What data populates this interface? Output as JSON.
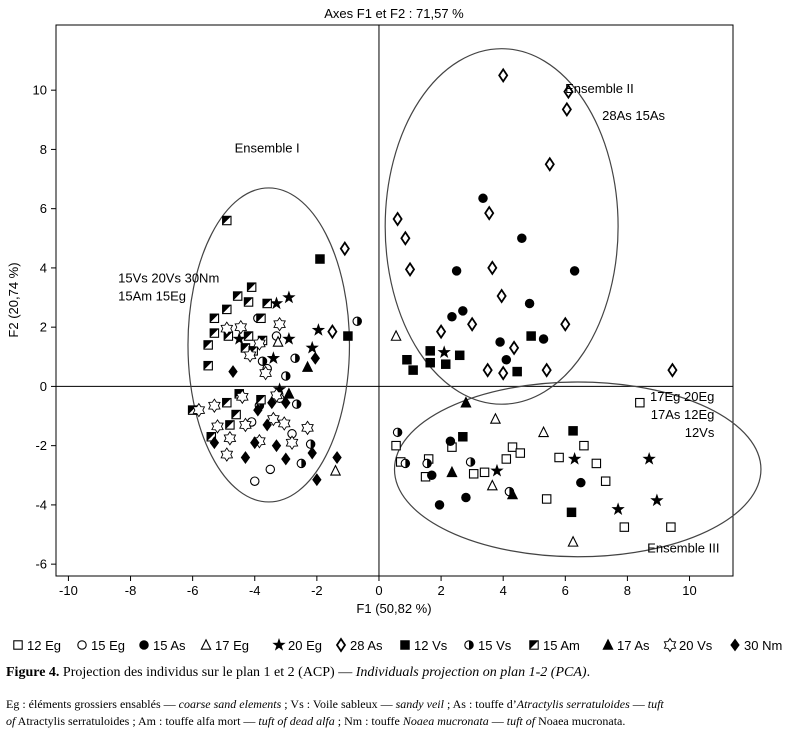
{
  "chart_data": {
    "type": "scatter",
    "title": "Axes F1 et F2 : 71,57 %",
    "xlabel": "F1 (50,82 %)",
    "ylabel": "F2 (20,74 %)",
    "xlim": [
      -10.4,
      11.4
    ],
    "ylim": [
      -6.4,
      12.2
    ],
    "xticks": [
      "-10",
      "-8",
      "-6",
      "-4",
      "-2",
      "0",
      "2",
      "4",
      "6",
      "8",
      "10"
    ],
    "yticks": [
      "-6",
      "-4",
      "-2",
      "0",
      "2",
      "4",
      "6",
      "8",
      "10"
    ],
    "grid": false,
    "ellipses": [
      {
        "name": "Ensemble I",
        "cx": -3.55,
        "cy": 1.4,
        "rx": 2.6,
        "ry": 5.3
      },
      {
        "name": "Ensemble II",
        "cx": 3.95,
        "cy": 5.4,
        "rx": 3.75,
        "ry": 6.0
      },
      {
        "name": "Ensemble III",
        "cx": 6.4,
        "cy": -2.8,
        "rx": 5.9,
        "ry": 2.95
      }
    ],
    "annotations": [
      {
        "text": "Ensemble I",
        "x": -3.6,
        "y": 7.9
      },
      {
        "text": "Ensemble II",
        "x": 7.1,
        "y": 9.9
      },
      {
        "text": "28As 15As",
        "x": 8.2,
        "y": 9.0
      },
      {
        "text": "15Vs 20Vs 30Nm",
        "x": -8.4,
        "y": 3.5
      },
      {
        "text": "15Am 15Eg",
        "x": -8.4,
        "y": 2.9
      },
      {
        "text": "17Eg 20Eg",
        "x": 10.8,
        "y": -0.5
      },
      {
        "text": "17As 12Eg",
        "x": 10.8,
        "y": -1.1
      },
      {
        "text": "12Vs",
        "x": 10.8,
        "y": -1.7
      },
      {
        "text": "Ensemble III",
        "x": 9.8,
        "y": -5.6
      }
    ],
    "series": [
      {
        "name": "12 Eg",
        "marker": "square-open",
        "points": [
          [
            0.55,
            -2.0
          ],
          [
            1.6,
            -2.45
          ],
          [
            3.4,
            -2.9
          ],
          [
            4.1,
            -2.45
          ],
          [
            5.4,
            -3.8
          ],
          [
            5.8,
            -2.4
          ],
          [
            6.6,
            -2.0
          ],
          [
            7.0,
            -2.6
          ],
          [
            7.9,
            -4.75
          ],
          [
            8.4,
            -0.55
          ],
          [
            9.4,
            -4.75
          ],
          [
            0.7,
            -2.55
          ],
          [
            1.5,
            -3.05
          ],
          [
            2.35,
            -2.05
          ],
          [
            3.05,
            -2.95
          ],
          [
            4.3,
            -2.05
          ],
          [
            4.55,
            -2.25
          ],
          [
            7.3,
            -3.2
          ]
        ]
      },
      {
        "name": "15 Eg",
        "marker": "circle-open",
        "points": [
          [
            -3.3,
            1.7
          ],
          [
            -3.9,
            2.3
          ],
          [
            -3.6,
            0.6
          ],
          [
            -3.2,
            -0.4
          ],
          [
            -2.8,
            -1.6
          ],
          [
            -4.0,
            -3.2
          ],
          [
            -3.5,
            -2.8
          ],
          [
            -4.1,
            -1.2
          ]
        ]
      },
      {
        "name": "15 As",
        "marker": "circle-filled",
        "points": [
          [
            1.95,
            -4.0
          ],
          [
            2.5,
            3.9
          ],
          [
            3.35,
            6.35
          ],
          [
            3.9,
            1.5
          ],
          [
            4.1,
            0.9
          ],
          [
            4.6,
            5.0
          ],
          [
            5.3,
            1.6
          ],
          [
            6.3,
            3.9
          ],
          [
            6.5,
            -3.25
          ],
          [
            2.35,
            2.35
          ],
          [
            2.7,
            2.55
          ],
          [
            4.85,
            2.8
          ],
          [
            2.3,
            -1.85
          ],
          [
            2.8,
            -3.75
          ],
          [
            1.7,
            -3.0
          ]
        ]
      },
      {
        "name": "17 Eg",
        "marker": "triangle-open",
        "points": [
          [
            0.55,
            1.7
          ],
          [
            3.75,
            -1.1
          ],
          [
            3.65,
            -3.35
          ],
          [
            5.3,
            -1.55
          ],
          [
            6.25,
            -5.25
          ],
          [
            -3.25,
            1.5
          ],
          [
            -1.4,
            -2.85
          ]
        ]
      },
      {
        "name": "20 Eg",
        "marker": "star-filled",
        "points": [
          [
            -3.3,
            2.8
          ],
          [
            -2.9,
            1.6
          ],
          [
            -2.15,
            1.3
          ],
          [
            -1.95,
            1.9
          ],
          [
            -3.2,
            -0.1
          ],
          [
            -3.4,
            0.95
          ],
          [
            -4.5,
            1.6
          ],
          [
            -2.9,
            3.0
          ],
          [
            2.1,
            1.15
          ],
          [
            3.8,
            -2.85
          ],
          [
            6.3,
            -2.45
          ],
          [
            7.7,
            -4.15
          ],
          [
            8.7,
            -2.45
          ],
          [
            8.95,
            -3.85
          ]
        ]
      },
      {
        "name": "28 As",
        "marker": "diamond-open",
        "points": [
          [
            4.0,
            10.5
          ],
          [
            6.1,
            9.95
          ],
          [
            6.05,
            9.35
          ],
          [
            5.5,
            7.5
          ],
          [
            3.55,
            5.85
          ],
          [
            -1.1,
            4.65
          ],
          [
            0.6,
            5.65
          ],
          [
            0.85,
            5.0
          ],
          [
            1.0,
            3.95
          ],
          [
            3.65,
            4.0
          ],
          [
            3.95,
            3.05
          ],
          [
            2.0,
            1.85
          ],
          [
            3.0,
            2.1
          ],
          [
            6.0,
            2.1
          ],
          [
            3.5,
            0.55
          ],
          [
            4.0,
            0.45
          ],
          [
            5.4,
            0.55
          ],
          [
            9.45,
            0.55
          ],
          [
            4.35,
            1.3
          ],
          [
            -1.5,
            1.85
          ]
        ]
      },
      {
        "name": "12 Vs",
        "marker": "square-filled",
        "points": [
          [
            -1.9,
            4.3
          ],
          [
            -1.0,
            1.7
          ],
          [
            0.9,
            0.9
          ],
          [
            1.1,
            0.55
          ],
          [
            1.65,
            1.2
          ],
          [
            1.65,
            0.8
          ],
          [
            2.15,
            0.75
          ],
          [
            2.6,
            1.05
          ],
          [
            4.45,
            0.5
          ],
          [
            4.9,
            1.7
          ],
          [
            6.25,
            -1.5
          ],
          [
            6.2,
            -4.25
          ],
          [
            2.7,
            -1.7
          ]
        ]
      },
      {
        "name": "15 Vs",
        "marker": "circle-half",
        "points": [
          [
            -0.7,
            2.2
          ],
          [
            0.6,
            -1.55
          ],
          [
            0.85,
            -2.6
          ],
          [
            1.55,
            -2.6
          ],
          [
            2.95,
            -2.55
          ],
          [
            4.2,
            -3.55
          ],
          [
            -3.0,
            0.35
          ],
          [
            -2.65,
            -0.6
          ],
          [
            -2.7,
            0.95
          ],
          [
            -3.75,
            0.85
          ],
          [
            -3.85,
            -0.65
          ],
          [
            -2.5,
            -2.6
          ],
          [
            -2.2,
            -1.95
          ]
        ]
      },
      {
        "name": "15 Am",
        "marker": "square-half",
        "points": [
          [
            -4.9,
            5.6
          ],
          [
            -4.1,
            3.35
          ],
          [
            -4.2,
            2.85
          ],
          [
            -3.6,
            2.8
          ],
          [
            -3.8,
            2.3
          ],
          [
            -4.55,
            3.05
          ],
          [
            -4.9,
            2.6
          ],
          [
            -5.3,
            2.3
          ],
          [
            -5.3,
            1.8
          ],
          [
            -5.5,
            1.4
          ],
          [
            -5.5,
            0.7
          ],
          [
            -4.85,
            1.7
          ],
          [
            -4.2,
            1.7
          ],
          [
            -4.3,
            1.3
          ],
          [
            -4.05,
            1.2
          ],
          [
            -3.75,
            1.55
          ],
          [
            -4.9,
            -0.55
          ],
          [
            -4.6,
            -0.95
          ],
          [
            -4.8,
            -1.3
          ],
          [
            -4.5,
            -0.25
          ],
          [
            -6.0,
            -0.8
          ],
          [
            -5.4,
            -1.7
          ],
          [
            -3.8,
            -0.45
          ]
        ]
      },
      {
        "name": "17 As",
        "marker": "triangle-filled",
        "points": [
          [
            2.35,
            -2.9
          ],
          [
            2.8,
            -0.55
          ],
          [
            4.3,
            -3.65
          ],
          [
            -2.3,
            0.65
          ],
          [
            -2.9,
            -0.25
          ]
        ]
      },
      {
        "name": "20 Vs",
        "marker": "star-open",
        "points": [
          [
            -5.8,
            -0.8
          ],
          [
            -5.3,
            -0.65
          ],
          [
            -4.9,
            1.95
          ],
          [
            -4.45,
            2.0
          ],
          [
            -4.8,
            -1.75
          ],
          [
            -5.2,
            -1.35
          ],
          [
            -4.3,
            -1.3
          ],
          [
            -4.9,
            -2.3
          ],
          [
            -3.85,
            -1.85
          ],
          [
            -3.4,
            -1.1
          ],
          [
            -3.3,
            -0.3
          ],
          [
            -3.2,
            2.1
          ],
          [
            -3.85,
            1.45
          ],
          [
            -4.15,
            1.05
          ],
          [
            -3.65,
            0.45
          ],
          [
            -3.05,
            -1.25
          ],
          [
            -2.8,
            -1.9
          ],
          [
            -2.3,
            -1.4
          ],
          [
            -4.4,
            -0.35
          ]
        ]
      },
      {
        "name": "30 Nm",
        "marker": "diamond-filled",
        "points": [
          [
            -4.7,
            0.5
          ],
          [
            -3.0,
            -0.55
          ],
          [
            -3.45,
            -0.55
          ],
          [
            -3.9,
            -0.8
          ],
          [
            -3.6,
            -1.3
          ],
          [
            -3.3,
            -2.0
          ],
          [
            -4.0,
            -1.9
          ],
          [
            -4.3,
            -2.4
          ],
          [
            -3.0,
            -2.45
          ],
          [
            -2.15,
            -2.25
          ],
          [
            -2.05,
            0.95
          ],
          [
            -1.35,
            -2.4
          ],
          [
            -5.3,
            -1.9
          ],
          [
            -2.0,
            -3.15
          ]
        ]
      }
    ]
  },
  "legend": {
    "items": [
      {
        "label": "12 Eg",
        "marker": "square-open"
      },
      {
        "label": "15 Eg",
        "marker": "circle-open"
      },
      {
        "label": "15 As",
        "marker": "circle-filled"
      },
      {
        "label": "17 Eg",
        "marker": "triangle-open"
      },
      {
        "label": "20 Eg",
        "marker": "star-filled"
      },
      {
        "label": "28 As",
        "marker": "diamond-open"
      },
      {
        "label": "12 Vs",
        "marker": "square-filled"
      },
      {
        "label": "15 Vs",
        "marker": "circle-half"
      },
      {
        "label": "15 Am",
        "marker": "square-half"
      },
      {
        "label": "17 As",
        "marker": "triangle-filled"
      },
      {
        "label": "20 Vs",
        "marker": "star-open"
      },
      {
        "label": "30 Nm",
        "marker": "diamond-filled"
      }
    ]
  },
  "caption": {
    "label": "Figure 4.",
    "text": " Projection des individus sur le plan 1 et 2 (ACP) — ",
    "text_en": "Individuals projection on plan 1-2 (PCA)",
    "end": "."
  },
  "footnote": {
    "p1": "Eg : éléments grossiers ensablés — ",
    "p1_en": "coarse sand elements",
    "p2": " ; Vs : Voile sableux — ",
    "p2_en": "sandy veil",
    "p3": " ; As : touffe d’",
    "p3_sp": "Atractylis serratuloides",
    "p3_dash": " — ",
    "p3_en": "tuft",
    "p4_of": "of",
    "p4": " Atractylis serratuloides ; Am : touffe alfa mort — ",
    "p4_en": "tuft of dead alfa",
    "p5": " ; Nm : touffe ",
    "p5_sp": "Noaea mucronata",
    "p5_dash": " — ",
    "p5_en": "tuft of",
    "p6": " Noaea mucronata."
  }
}
